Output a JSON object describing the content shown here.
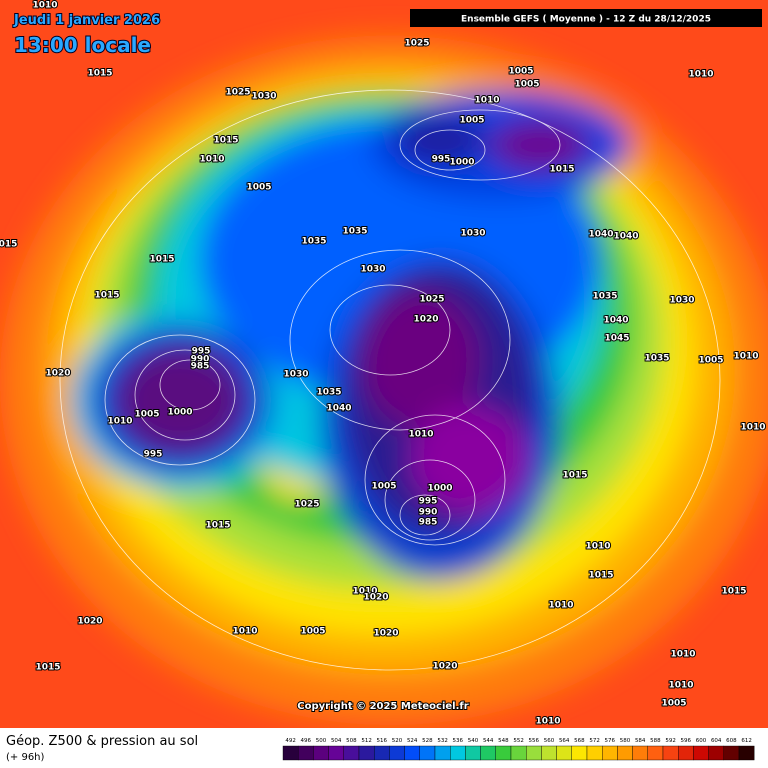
{
  "header": {
    "date": "Jeudi 1 janvier 2026",
    "time": "13:00 locale",
    "run": "Ensemble GEFS  ( Moyenne )  -  12 Z du 28/12/2025"
  },
  "copyright": "Copyright © 2025 Meteociel.fr",
  "footer": {
    "title": "Géop. Z500 & pression au sol",
    "subtitle": "(+ 96h)"
  },
  "colorbar": {
    "ticks": [
      492,
      496,
      500,
      504,
      508,
      512,
      516,
      520,
      524,
      528,
      532,
      536,
      540,
      544,
      548,
      552,
      556,
      560,
      564,
      568,
      572,
      576,
      580,
      584,
      588,
      592,
      596,
      600,
      604,
      608,
      612
    ]
  },
  "pressure_labels": [
    "1010",
    "1025",
    "1015",
    "1005",
    "1010",
    "1005",
    "1025",
    "1030",
    "1010",
    "1005",
    "1015",
    "1010",
    "995",
    "1000",
    "1015",
    "1005",
    "1035",
    "1035",
    "1030",
    "1040",
    "1040",
    "015",
    "1015",
    "1030",
    "1015",
    "1025",
    "1035",
    "1030",
    "1020",
    "1040",
    "1045",
    "995",
    "990",
    "985",
    "1035",
    "1005",
    "1010",
    "1020",
    "1030",
    "1035",
    "1040",
    "1010",
    "1005",
    "1000",
    "1010",
    "1010",
    "995",
    "1015",
    "1005",
    "1000",
    "995",
    "990",
    "985",
    "1025",
    "1015",
    "1010",
    "1015",
    "1010",
    "1020",
    "1015",
    "1010",
    "1020",
    "1010",
    "1005",
    "1020",
    "1010",
    "1015",
    "1020",
    "1010",
    "1005",
    "1010"
  ]
}
